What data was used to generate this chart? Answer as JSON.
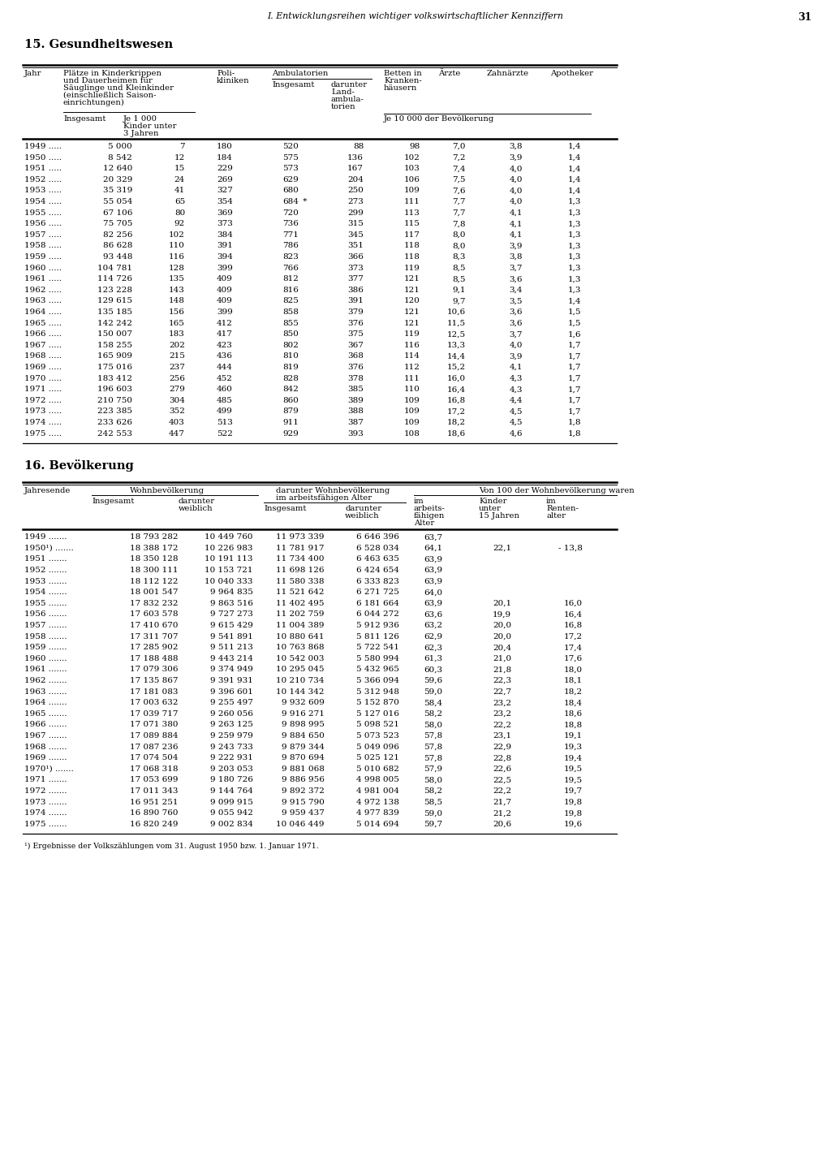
{
  "page_header": "I. Entwicklungsreihen wichtiger volkswirtschaftlicher Kennziffern",
  "page_number": "31",
  "section15_title": "15. Gesundheitswesen",
  "section16_title": "16. Bevölkerung",
  "footnote": "¹) Ergebnisse der Volkszählungen vom 31. August 1950 bzw. 1. Januar 1971.",
  "table15_data": [
    [
      "1949",
      "5 000",
      "7",
      "180",
      "520",
      "88",
      "98",
      "7,0",
      "3,8",
      "1,4"
    ],
    [
      "1950",
      "8 542",
      "12",
      "184",
      "575",
      "136",
      "102",
      "7,2",
      "3,9",
      "1,4"
    ],
    [
      "1951",
      "12 640",
      "15",
      "229",
      "573",
      "167",
      "103",
      "7,4",
      "4,0",
      "1,4"
    ],
    [
      "1952",
      "20 329",
      "24",
      "269",
      "629",
      "204",
      "106",
      "7,5",
      "4,0",
      "1,4"
    ],
    [
      "1953",
      "35 319",
      "41",
      "327",
      "680",
      "250",
      "109",
      "7,6",
      "4,0",
      "1,4"
    ],
    [
      "1954",
      "55 054",
      "65",
      "354",
      "684",
      "273",
      "111",
      "7,7",
      "4,0",
      "1,3"
    ],
    [
      "1955",
      "67 106",
      "80",
      "369",
      "720",
      "299",
      "113",
      "7,7",
      "4,1",
      "1,3"
    ],
    [
      "1956",
      "75 705",
      "92",
      "373",
      "736",
      "315",
      "115",
      "7,8",
      "4,1",
      "1,3"
    ],
    [
      "1957",
      "82 256",
      "102",
      "384",
      "771",
      "345",
      "117",
      "8,0",
      "4,1",
      "1,3"
    ],
    [
      "1958",
      "86 628",
      "110",
      "391",
      "786",
      "351",
      "118",
      "8,0",
      "3,9",
      "1,3"
    ],
    [
      "1959",
      "93 448",
      "116",
      "394",
      "823",
      "366",
      "118",
      "8,3",
      "3,8",
      "1,3"
    ],
    [
      "1960",
      "104 781",
      "128",
      "399",
      "766",
      "373",
      "119",
      "8,5",
      "3,7",
      "1,3"
    ],
    [
      "1961",
      "114 726",
      "135",
      "409",
      "812",
      "377",
      "121",
      "8,5",
      "3,6",
      "1,3"
    ],
    [
      "1962",
      "123 228",
      "143",
      "409",
      "816",
      "386",
      "121",
      "9,1",
      "3,4",
      "1,3"
    ],
    [
      "1963",
      "129 615",
      "148",
      "409",
      "825",
      "391",
      "120",
      "9,7",
      "3,5",
      "1,4"
    ],
    [
      "1964",
      "135 185",
      "156",
      "399",
      "858",
      "379",
      "121",
      "10,6",
      "3,6",
      "1,5"
    ],
    [
      "1965",
      "142 242",
      "165",
      "412",
      "855",
      "376",
      "121",
      "11,5",
      "3,6",
      "1,5"
    ],
    [
      "1966",
      "150 007",
      "183",
      "417",
      "850",
      "375",
      "119",
      "12,5",
      "3,7",
      "1,6"
    ],
    [
      "1967",
      "158 255",
      "202",
      "423",
      "802",
      "367",
      "116",
      "13,3",
      "4,0",
      "1,7"
    ],
    [
      "1968",
      "165 909",
      "215",
      "436",
      "810",
      "368",
      "114",
      "14,4",
      "3,9",
      "1,7"
    ],
    [
      "1969",
      "175 016",
      "237",
      "444",
      "819",
      "376",
      "112",
      "15,2",
      "4,1",
      "1,7"
    ],
    [
      "1970",
      "183 412",
      "256",
      "452",
      "828",
      "378",
      "111",
      "16,0",
      "4,3",
      "1,7"
    ],
    [
      "1971",
      "196 603",
      "279",
      "460",
      "842",
      "385",
      "110",
      "16,4",
      "4,3",
      "1,7"
    ],
    [
      "1972",
      "210 750",
      "304",
      "485",
      "860",
      "389",
      "109",
      "16,8",
      "4,4",
      "1,7"
    ],
    [
      "1973",
      "223 385",
      "352",
      "499",
      "879",
      "388",
      "109",
      "17,2",
      "4,5",
      "1,7"
    ],
    [
      "1974",
      "233 626",
      "403",
      "513",
      "911",
      "387",
      "109",
      "18,2",
      "4,5",
      "1,8"
    ],
    [
      "1975",
      "242 553",
      "447",
      "522",
      "929",
      "393",
      "108",
      "18,6",
      "4,6",
      "1,8"
    ]
  ],
  "table16_data": [
    [
      "1949",
      "18 793 282",
      "10 449 760",
      "11 973 339",
      "6 646 396",
      "63,7",
      "",
      ""
    ],
    [
      "1950¹)",
      "18 388 172",
      "10 226 983",
      "11 781 917",
      "6 528 034",
      "64,1",
      "22,1",
      "- 13,8"
    ],
    [
      "1951",
      "18 350 128",
      "10 191 113",
      "11 734 400",
      "6 463 635",
      "63,9",
      "",
      ""
    ],
    [
      "1952",
      "18 300 111",
      "10 153 721",
      "11 698 126",
      "6 424 654",
      "63,9",
      "",
      ""
    ],
    [
      "1953",
      "18 112 122",
      "10 040 333",
      "11 580 338",
      "6 333 823",
      "63,9",
      "",
      ""
    ],
    [
      "1954",
      "18 001 547",
      "9 964 835",
      "11 521 642",
      "6 271 725",
      "64,0",
      "",
      ""
    ],
    [
      "1955",
      "17 832 232",
      "9 863 516",
      "11 402 495",
      "6 181 664",
      "63,9",
      "20,1",
      "16,0"
    ],
    [
      "1956",
      "17 603 578",
      "9 727 273",
      "11 202 759",
      "6 044 272",
      "63,6",
      "19,9",
      "16,4"
    ],
    [
      "1957",
      "17 410 670",
      "9 615 429",
      "11 004 389",
      "5 912 936",
      "63,2",
      "20,0",
      "16,8"
    ],
    [
      "1958",
      "17 311 707",
      "9 541 891",
      "10 880 641",
      "5 811 126",
      "62,9",
      "20,0",
      "17,2"
    ],
    [
      "1959",
      "17 285 902",
      "9 511 213",
      "10 763 868",
      "5 722 541",
      "62,3",
      "20,4",
      "17,4"
    ],
    [
      "1960",
      "17 188 488",
      "9 443 214",
      "10 542 003",
      "5 580 994",
      "61,3",
      "21,0",
      "17,6"
    ],
    [
      "1961",
      "17 079 306",
      "9 374 949",
      "10 295 045",
      "5 432 965",
      "60,3",
      "21,8",
      "18,0"
    ],
    [
      "1962",
      "17 135 867",
      "9 391 931",
      "10 210 734",
      "5 366 094",
      "59,6",
      "22,3",
      "18,1"
    ],
    [
      "1963",
      "17 181 083",
      "9 396 601",
      "10 144 342",
      "5 312 948",
      "59,0",
      "22,7",
      "18,2"
    ],
    [
      "1964",
      "17 003 632",
      "9 255 497",
      "9 932 609",
      "5 152 870",
      "58,4",
      "23,2",
      "18,4"
    ],
    [
      "1965",
      "17 039 717",
      "9 260 056",
      "9 916 271",
      "5 127 016",
      "58,2",
      "23,2",
      "18,6"
    ],
    [
      "1966",
      "17 071 380",
      "9 263 125",
      "9 898 995",
      "5 098 521",
      "58,0",
      "22,2",
      "18,8"
    ],
    [
      "1967",
      "17 089 884",
      "9 259 979",
      "9 884 650",
      "5 073 523",
      "57,8",
      "23,1",
      "19,1"
    ],
    [
      "1968",
      "17 087 236",
      "9 243 733",
      "9 879 344",
      "5 049 096",
      "57,8",
      "22,9",
      "19,3"
    ],
    [
      "1969",
      "17 074 504",
      "9 222 931",
      "9 870 694",
      "5 025 121",
      "57,8",
      "22,8",
      "19,4"
    ],
    [
      "1970¹)",
      "17 068 318",
      "9 203 053",
      "9 881 068",
      "5 010 682",
      "57,9",
      "22,6",
      "19,5"
    ],
    [
      "1971",
      "17 053 699",
      "9 180 726",
      "9 886 956",
      "4 998 005",
      "58,0",
      "22,5",
      "19,5"
    ],
    [
      "1972",
      "17 011 343",
      "9 144 764",
      "9 892 372",
      "4 981 004",
      "58,2",
      "22,2",
      "19,7"
    ],
    [
      "1973",
      "16 951 251",
      "9 099 915",
      "9 915 790",
      "4 972 138",
      "58,5",
      "21,7",
      "19,8"
    ],
    [
      "1974",
      "16 890 760",
      "9 055 942",
      "9 959 437",
      "4 977 839",
      "59,0",
      "21,2",
      "19,8"
    ],
    [
      "1975",
      "16 820 249",
      "9 002 834",
      "10 046 449",
      "5 014 694",
      "59,7",
      "20,6",
      "19,6"
    ]
  ]
}
